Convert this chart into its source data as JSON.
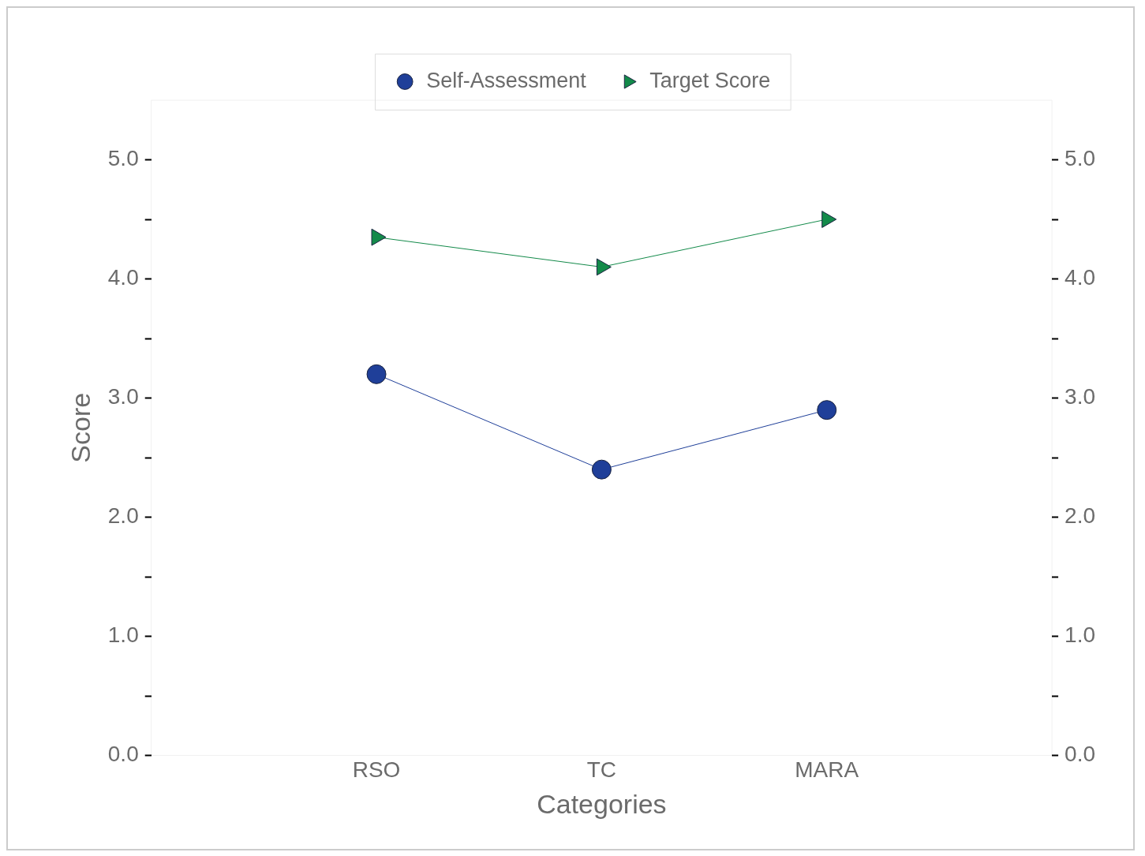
{
  "chart_data": {
    "type": "line",
    "xlabel": "Categories",
    "ylabel": "Score",
    "categories": [
      "RSO",
      "TC",
      "MARA"
    ],
    "series": [
      {
        "name": "Self-Assessment",
        "color": "#1f3f99",
        "marker": "circle",
        "values": [
          3.2,
          2.4,
          2.9
        ]
      },
      {
        "name": "Target Score",
        "color": "#138a4a",
        "marker": "triangle",
        "values": [
          4.35,
          4.1,
          4.5
        ]
      }
    ],
    "ylim": [
      0,
      5.5
    ],
    "yticks": [
      {
        "value": 0,
        "label": "0.0"
      },
      {
        "value": 0.5,
        "label": null
      },
      {
        "value": 1,
        "label": "1.0"
      },
      {
        "value": 1.5,
        "label": null
      },
      {
        "value": 2,
        "label": "2.0"
      },
      {
        "value": 2.5,
        "label": null
      },
      {
        "value": 3,
        "label": "3.0"
      },
      {
        "value": 3.5,
        "label": null
      },
      {
        "value": 4,
        "label": "4.0"
      },
      {
        "value": 4.5,
        "label": null
      },
      {
        "value": 5,
        "label": "5.0"
      }
    ],
    "y2lim": [
      0,
      5.5
    ],
    "y2ticks": [
      {
        "value": 0,
        "label": "0.0"
      },
      {
        "value": 0.5,
        "label": null
      },
      {
        "value": 1,
        "label": "1.0"
      },
      {
        "value": 1.5,
        "label": null
      },
      {
        "value": 2,
        "label": "2.0"
      },
      {
        "value": 2.5,
        "label": null
      },
      {
        "value": 3,
        "label": "3.0"
      },
      {
        "value": 3.5,
        "label": null
      },
      {
        "value": 4,
        "label": "4.0"
      },
      {
        "value": 4.5,
        "label": null
      },
      {
        "value": 5,
        "label": "5.0"
      }
    ],
    "grid": false,
    "legend": "top",
    "line_style": "solid"
  }
}
